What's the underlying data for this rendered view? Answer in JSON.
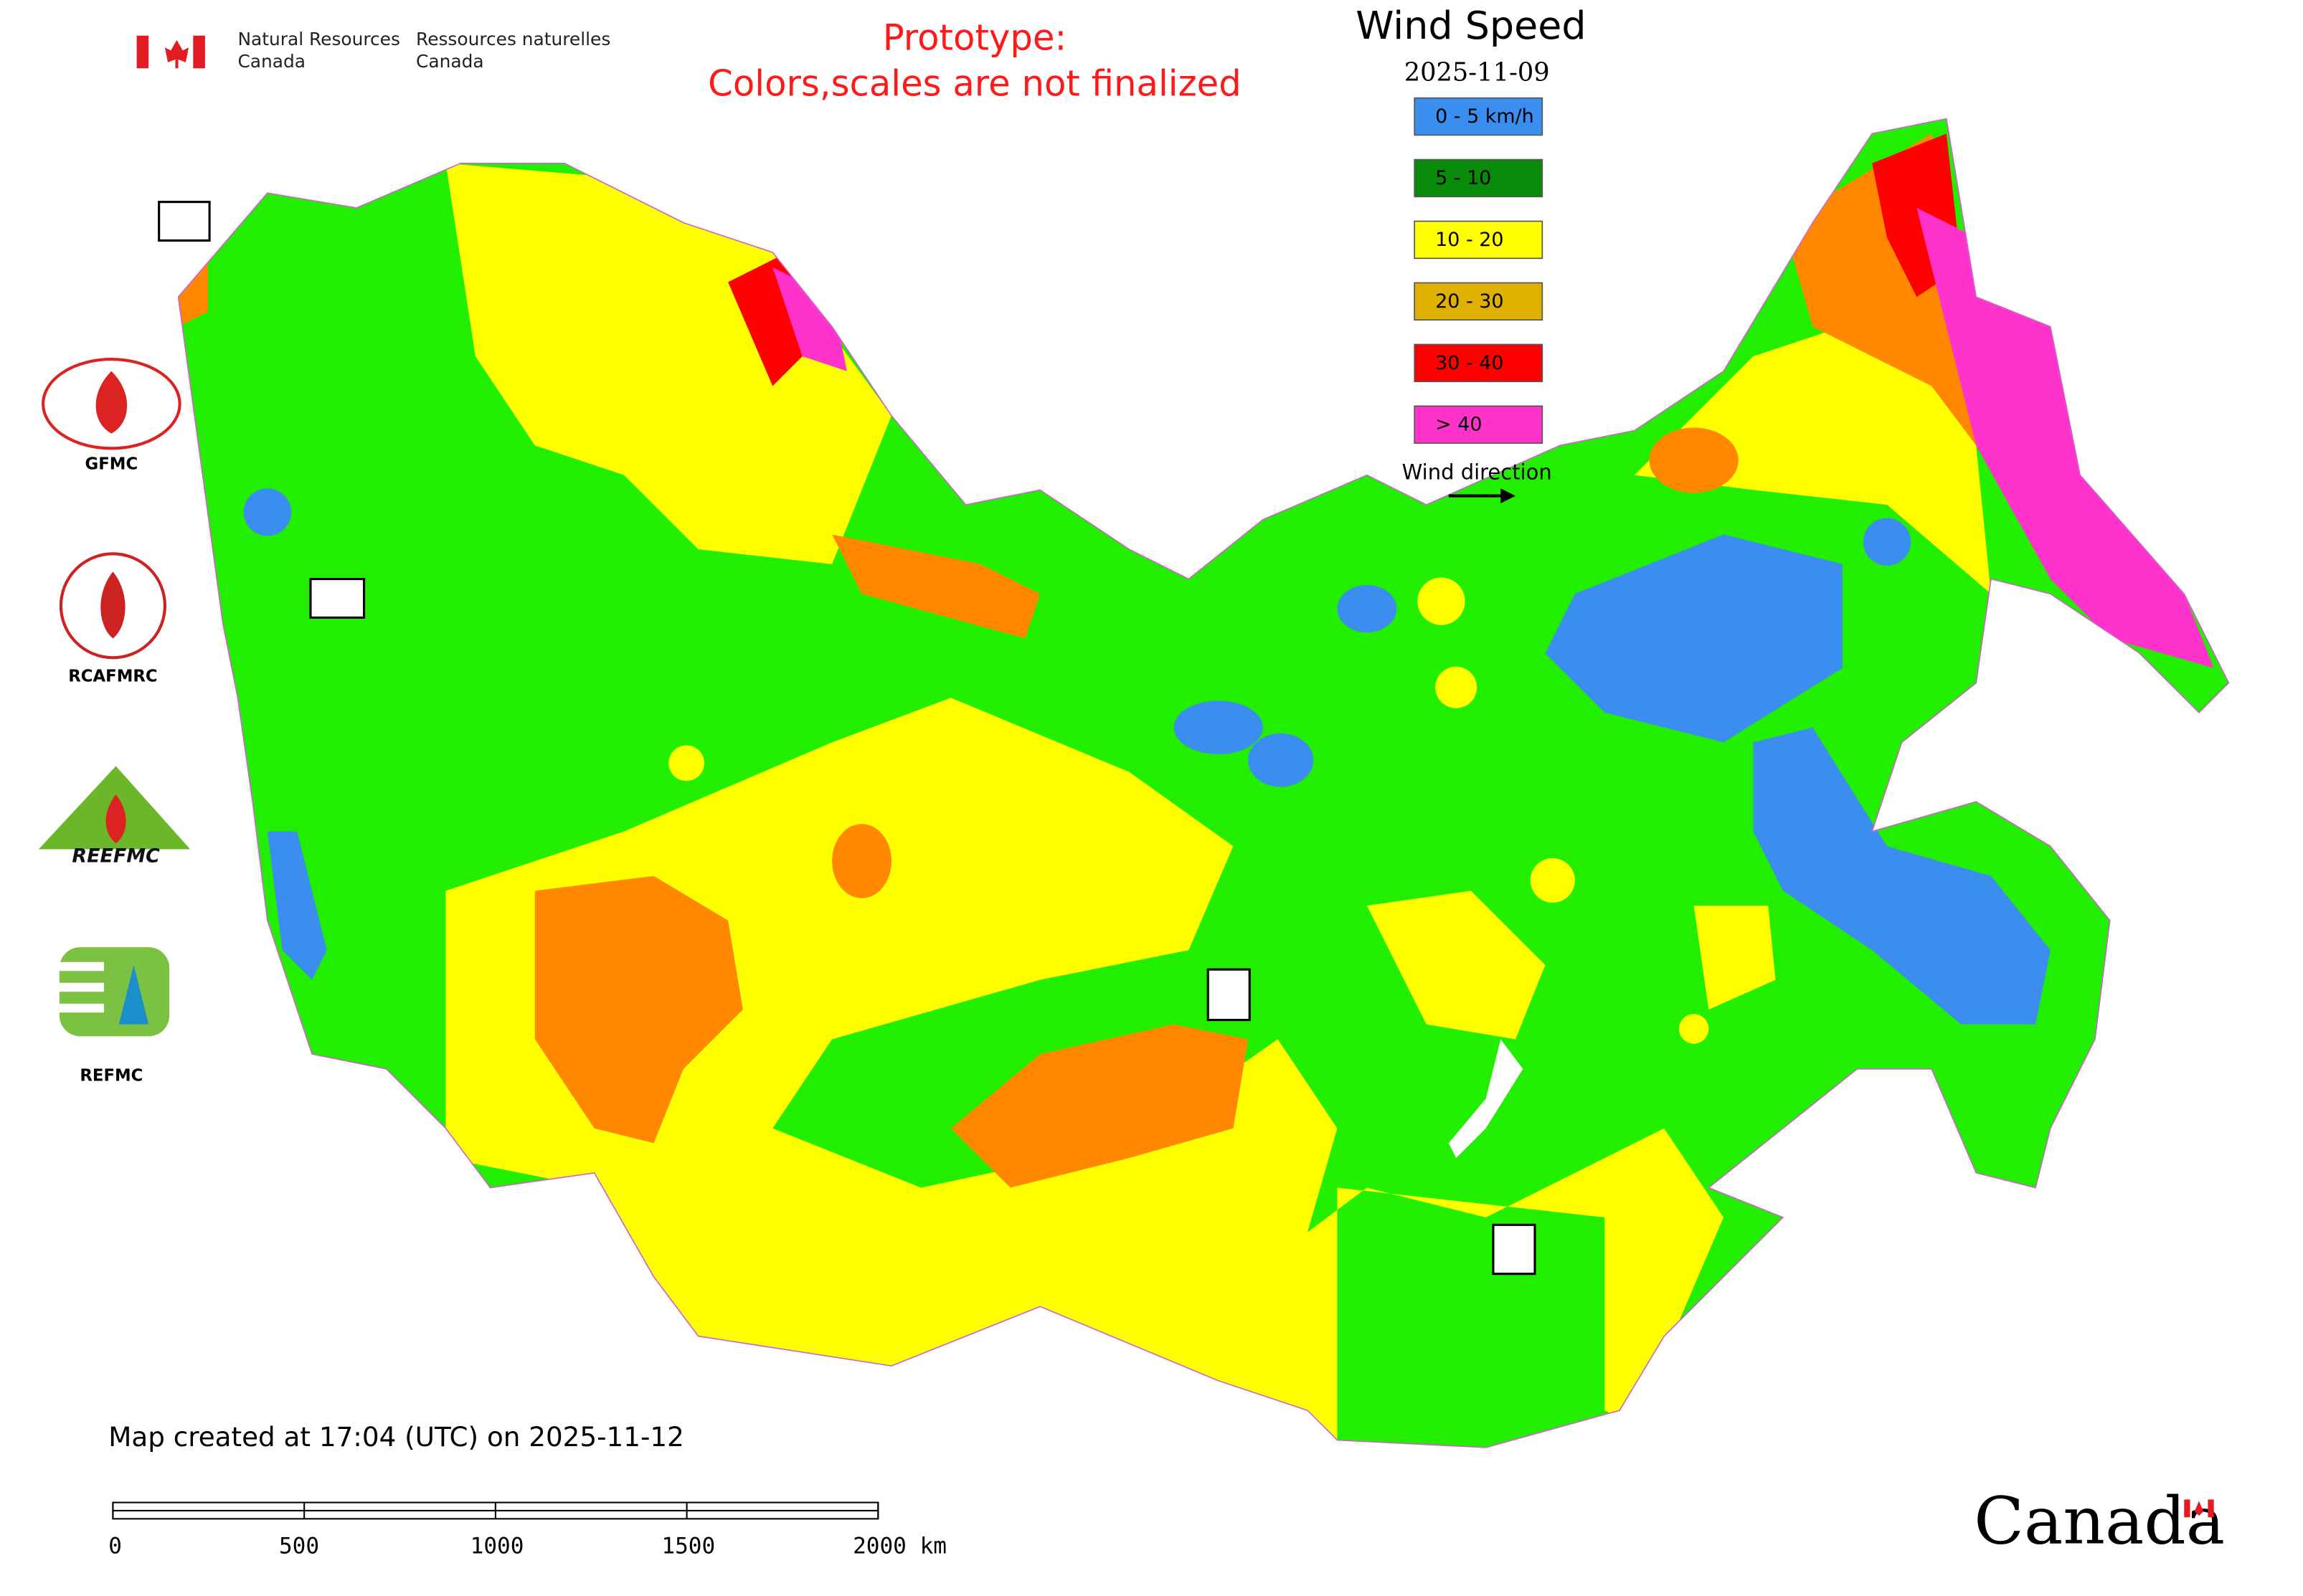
{
  "header": {
    "en_line1": "Natural Resources",
    "en_line2": "Canada",
    "fr_line1": "Ressources naturelles",
    "fr_line2": "Canada"
  },
  "notice": {
    "line1": "Prototype:",
    "line2": "Colors,scales are not finalized"
  },
  "legend": {
    "title": "Wind Speed",
    "date": "2025-11-09",
    "items": [
      {
        "label": "0 - 5 km/h",
        "color": "#3b8ef0"
      },
      {
        "label": "5 - 10",
        "color": "#0a8a0a"
      },
      {
        "label": "10 - 20",
        "color": "#ffff00"
      },
      {
        "label": "20 - 30",
        "color": "#e0b000"
      },
      {
        "label": "30 - 40",
        "color": "#ff0000"
      },
      {
        "label": "> 40",
        "color": "#ff33cc"
      }
    ],
    "direction_label": "Wind direction"
  },
  "logos": [
    {
      "label": "GFMC"
    },
    {
      "label": "RCAFMRC"
    },
    {
      "label": "REEFMC"
    },
    {
      "label": "REFMC"
    }
  ],
  "footer": {
    "created": "Map created at 17:04 (UTC) on 2025-11-12",
    "scale_labels": [
      "0",
      "500",
      "1000",
      "1500",
      "2000 km"
    ],
    "wordmark": "Canada"
  }
}
